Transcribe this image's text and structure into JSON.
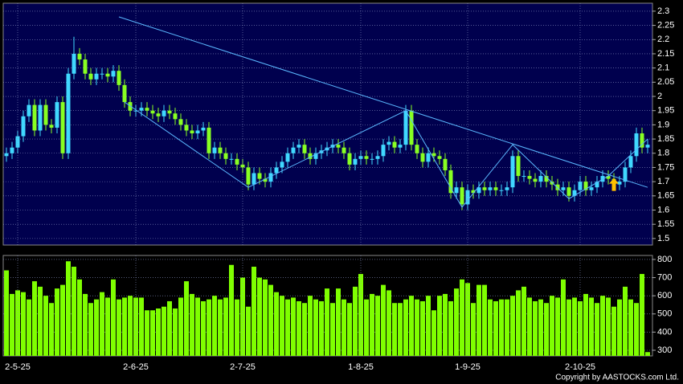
{
  "chart_data": [
    {
      "type": "candlestick",
      "up_color": "#40d8ff",
      "down_color": "#88ff22",
      "grid": true,
      "ylim": [
        1.477,
        2.328
      ],
      "yticks": [
        1.5,
        1.55,
        1.6,
        1.65,
        1.7,
        1.75,
        1.8,
        1.85,
        1.9,
        1.95,
        2,
        2.05,
        2.1,
        2.15,
        2.2,
        2.25,
        2.3
      ],
      "open": [
        1.79,
        1.8,
        1.82,
        1.86,
        1.93,
        1.97,
        1.88,
        1.97,
        1.9,
        1.89,
        1.98,
        1.8,
        2.08,
        2.15,
        2.13,
        2.08,
        2.06,
        2.08,
        2.08,
        2.07,
        2.09,
        2.04,
        1.98,
        1.95,
        1.95,
        1.96,
        1.95,
        1.94,
        1.93,
        1.95,
        1.94,
        1.92,
        1.9,
        1.88,
        1.87,
        1.88,
        1.89,
        1.8,
        1.82,
        1.8,
        1.78,
        1.78,
        1.76,
        1.75,
        1.69,
        1.73,
        1.71,
        1.7,
        1.73,
        1.75,
        1.77,
        1.8,
        1.82,
        1.83,
        1.8,
        1.78,
        1.8,
        1.81,
        1.82,
        1.83,
        1.82,
        1.8,
        1.76,
        1.78,
        1.79,
        1.78,
        1.78,
        1.79,
        1.83,
        1.84,
        1.82,
        1.83,
        1.95,
        1.83,
        1.8,
        1.77,
        1.8,
        1.79,
        1.78,
        1.74,
        1.66,
        1.68,
        1.62,
        1.67,
        1.66,
        1.68,
        1.67,
        1.68,
        1.67,
        1.67,
        1.68,
        1.79,
        1.72,
        1.72,
        1.71,
        1.7,
        1.72,
        1.7,
        1.69,
        1.67,
        1.68,
        1.65,
        1.67,
        1.7,
        1.67,
        1.68,
        1.7,
        1.72,
        1.71,
        1.69,
        1.7,
        1.75,
        1.79,
        1.87,
        1.82
      ],
      "high": [
        1.82,
        1.84,
        1.88,
        1.95,
        1.99,
        1.99,
        1.99,
        1.99,
        1.92,
        2.0,
        2.0,
        2.1,
        2.21,
        2.17,
        2.15,
        2.1,
        2.1,
        2.1,
        2.1,
        2.11,
        2.11,
        2.06,
        2.0,
        1.97,
        1.98,
        1.98,
        1.97,
        1.96,
        1.97,
        1.97,
        1.96,
        1.94,
        1.92,
        1.9,
        1.9,
        1.91,
        1.91,
        1.84,
        1.84,
        1.82,
        1.8,
        1.8,
        1.78,
        1.77,
        1.75,
        1.75,
        1.73,
        1.75,
        1.77,
        1.79,
        1.82,
        1.84,
        1.85,
        1.85,
        1.82,
        1.82,
        1.83,
        1.84,
        1.85,
        1.85,
        1.84,
        1.82,
        1.8,
        1.81,
        1.81,
        1.8,
        1.81,
        1.85,
        1.86,
        1.86,
        1.85,
        1.97,
        1.97,
        1.85,
        1.82,
        1.82,
        1.82,
        1.81,
        1.8,
        1.76,
        1.7,
        1.7,
        1.69,
        1.69,
        1.7,
        1.7,
        1.7,
        1.7,
        1.69,
        1.7,
        1.81,
        1.81,
        1.74,
        1.74,
        1.73,
        1.74,
        1.74,
        1.72,
        1.71,
        1.7,
        1.7,
        1.69,
        1.72,
        1.72,
        1.7,
        1.72,
        1.74,
        1.74,
        1.73,
        1.72,
        1.77,
        1.81,
        1.89,
        1.89,
        1.85
      ],
      "low": [
        1.77,
        1.78,
        1.8,
        1.84,
        1.91,
        1.86,
        1.86,
        1.88,
        1.87,
        1.87,
        1.78,
        1.78,
        2.06,
        2.11,
        2.06,
        2.04,
        2.04,
        2.06,
        2.05,
        2.05,
        2.02,
        1.96,
        1.93,
        1.93,
        1.93,
        1.93,
        1.92,
        1.91,
        1.91,
        1.92,
        1.9,
        1.88,
        1.86,
        1.85,
        1.85,
        1.86,
        1.78,
        1.78,
        1.78,
        1.76,
        1.76,
        1.74,
        1.73,
        1.67,
        1.67,
        1.69,
        1.68,
        1.68,
        1.71,
        1.73,
        1.75,
        1.78,
        1.8,
        1.78,
        1.76,
        1.76,
        1.78,
        1.79,
        1.8,
        1.8,
        1.78,
        1.74,
        1.74,
        1.76,
        1.76,
        1.76,
        1.76,
        1.77,
        1.81,
        1.8,
        1.8,
        1.81,
        1.81,
        1.78,
        1.75,
        1.75,
        1.77,
        1.76,
        1.72,
        1.64,
        1.64,
        1.6,
        1.6,
        1.64,
        1.64,
        1.65,
        1.65,
        1.65,
        1.65,
        1.65,
        1.66,
        1.7,
        1.7,
        1.69,
        1.68,
        1.68,
        1.68,
        1.67,
        1.65,
        1.65,
        1.63,
        1.63,
        1.65,
        1.65,
        1.65,
        1.66,
        1.68,
        1.69,
        1.67,
        1.67,
        1.68,
        1.73,
        1.77,
        1.8,
        1.8
      ],
      "close": [
        1.8,
        1.82,
        1.86,
        1.93,
        1.97,
        1.88,
        1.97,
        1.9,
        1.89,
        1.98,
        1.8,
        2.08,
        2.15,
        2.13,
        2.08,
        2.06,
        2.08,
        2.08,
        2.07,
        2.09,
        2.04,
        1.98,
        1.95,
        1.95,
        1.96,
        1.95,
        1.94,
        1.93,
        1.95,
        1.94,
        1.92,
        1.9,
        1.88,
        1.87,
        1.88,
        1.89,
        1.8,
        1.82,
        1.8,
        1.78,
        1.78,
        1.76,
        1.75,
        1.69,
        1.73,
        1.71,
        1.7,
        1.73,
        1.75,
        1.77,
        1.8,
        1.82,
        1.83,
        1.8,
        1.78,
        1.8,
        1.81,
        1.82,
        1.83,
        1.82,
        1.8,
        1.76,
        1.78,
        1.79,
        1.78,
        1.78,
        1.79,
        1.83,
        1.84,
        1.82,
        1.83,
        1.95,
        1.83,
        1.8,
        1.77,
        1.8,
        1.79,
        1.78,
        1.74,
        1.66,
        1.68,
        1.62,
        1.67,
        1.66,
        1.68,
        1.67,
        1.68,
        1.67,
        1.67,
        1.68,
        1.79,
        1.72,
        1.72,
        1.71,
        1.7,
        1.72,
        1.7,
        1.69,
        1.67,
        1.68,
        1.65,
        1.67,
        1.7,
        1.67,
        1.68,
        1.7,
        1.72,
        1.71,
        1.69,
        1.7,
        1.75,
        1.79,
        1.87,
        1.82,
        1.83
      ],
      "trendlines": [
        {
          "color": "#5ab8ff",
          "x": [
            20,
            114
          ],
          "y": [
            2.28,
            1.68
          ]
        },
        {
          "color": "#5ab8ff",
          "x": [
            21,
            43,
            71,
            81,
            90,
            100,
            107,
            114
          ],
          "y": [
            1.98,
            1.68,
            1.95,
            1.61,
            1.83,
            1.64,
            1.72,
            1.85
          ]
        }
      ],
      "marker": {
        "color": "#ffc000",
        "x": 108,
        "value": 1.69
      }
    },
    {
      "type": "bar",
      "color": "#7fff00",
      "grid": true,
      "ylim": [
        269,
        822
      ],
      "yticks": [
        300,
        400,
        500,
        600,
        700,
        800
      ],
      "categories": [
        null,
        null,
        "2-5-25",
        null,
        null,
        null,
        null,
        null,
        null,
        null,
        null,
        null,
        null,
        null,
        null,
        null,
        null,
        null,
        null,
        null,
        null,
        null,
        null,
        "2-6-25",
        null,
        null,
        null,
        null,
        null,
        null,
        null,
        null,
        null,
        null,
        null,
        null,
        null,
        null,
        null,
        null,
        null,
        null,
        "2-7-25",
        null,
        null,
        null,
        null,
        null,
        null,
        null,
        null,
        null,
        null,
        null,
        null,
        null,
        null,
        null,
        null,
        null,
        null,
        null,
        null,
        "1-8-25",
        null,
        null,
        null,
        null,
        null,
        null,
        null,
        null,
        null,
        null,
        null,
        null,
        null,
        null,
        null,
        null,
        null,
        null,
        "1-9-25",
        null,
        null,
        null,
        null,
        null,
        null,
        null,
        null,
        null,
        null,
        null,
        null,
        null,
        null,
        null,
        null,
        null,
        null,
        null,
        "2-10-25",
        null,
        null,
        null,
        null,
        null,
        null,
        null,
        null,
        null,
        null,
        null,
        null
      ],
      "values": [
        740,
        610,
        630,
        620,
        580,
        680,
        650,
        600,
        560,
        640,
        660,
        790,
        760,
        690,
        610,
        560,
        580,
        620,
        590,
        690,
        580,
        590,
        600,
        590,
        590,
        520,
        520,
        530,
        540,
        570,
        530,
        590,
        680,
        610,
        590,
        570,
        580,
        600,
        580,
        590,
        770,
        580,
        700,
        540,
        760,
        700,
        690,
        660,
        620,
        600,
        580,
        590,
        570,
        560,
        600,
        580,
        570,
        640,
        560,
        640,
        580,
        560,
        650,
        720,
        580,
        610,
        600,
        660,
        630,
        560,
        560,
        580,
        600,
        580,
        570,
        600,
        520,
        600,
        610,
        570,
        640,
        690,
        670,
        560,
        660,
        660,
        580,
        570,
        580,
        580,
        600,
        630,
        650,
        590,
        570,
        580,
        560,
        600,
        590,
        690,
        580,
        590,
        570,
        610,
        590,
        560,
        600,
        590,
        540,
        580,
        650,
        580,
        560,
        720,
        290
      ]
    }
  ],
  "copyright": "Copyright by AASTOCKS.com Ltd."
}
